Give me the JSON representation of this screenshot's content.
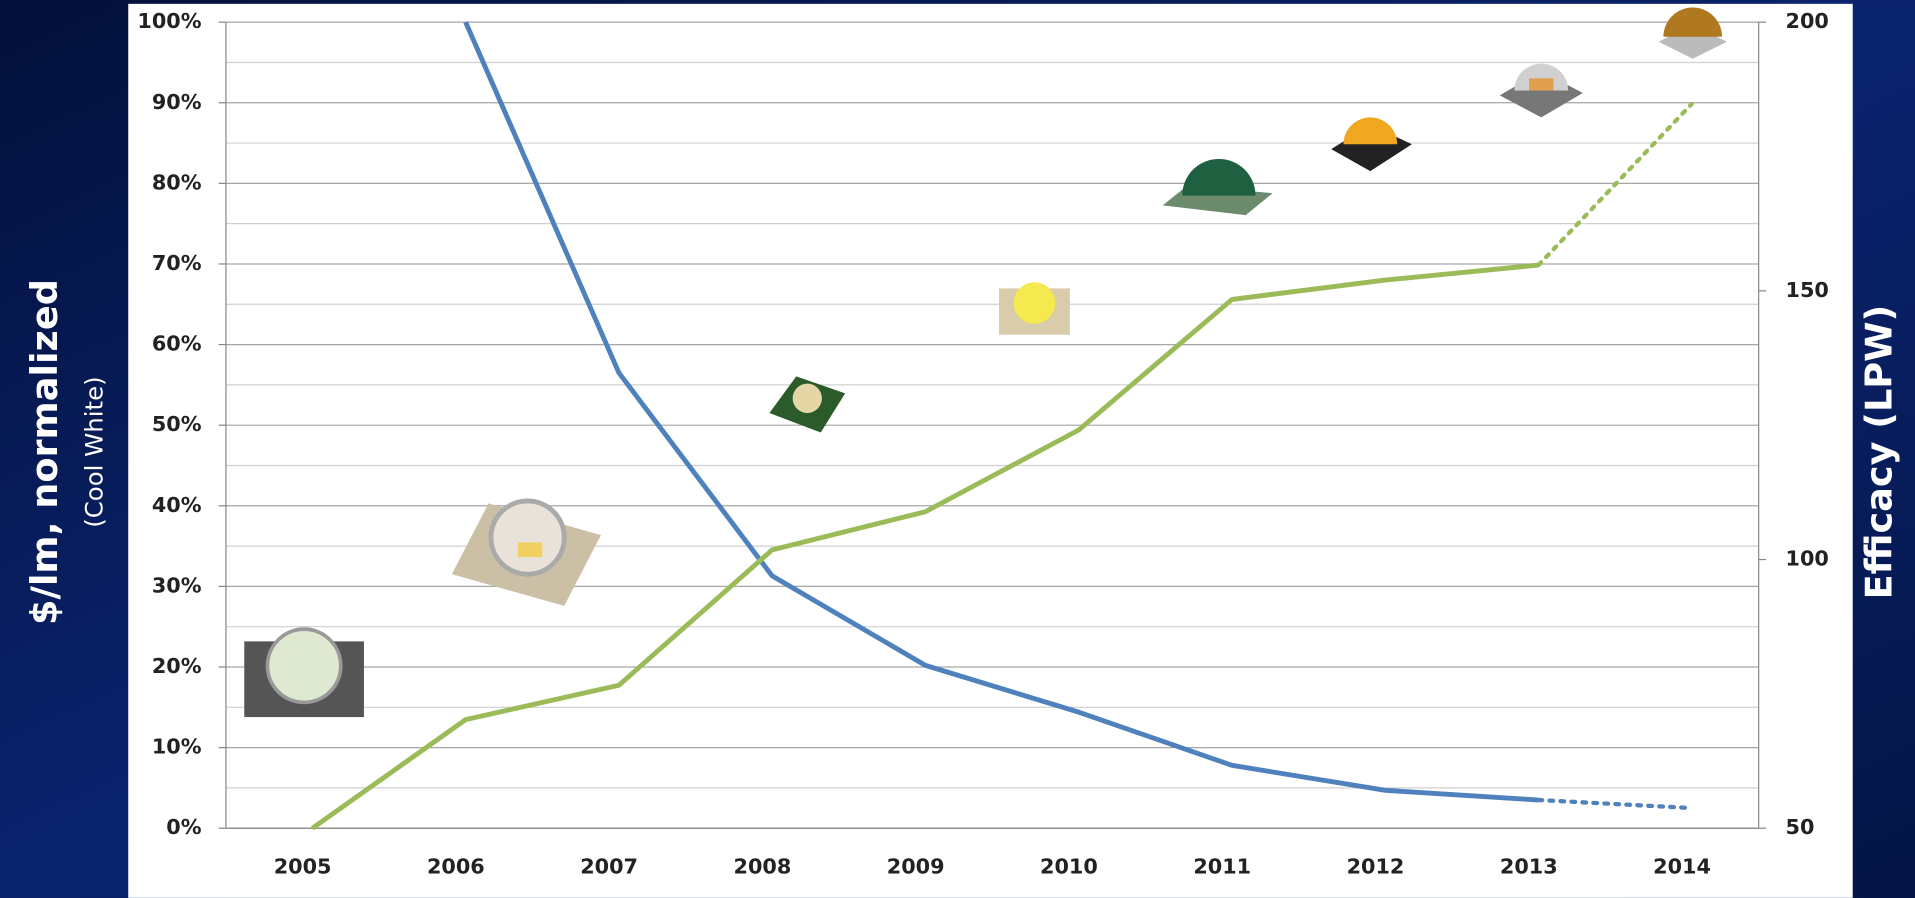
{
  "chart_data": {
    "type": "line",
    "y_title": "$/lm, normalized",
    "y_subtitle": "(Cool White)",
    "y2_title": "Efficacy (LPW)",
    "categories": [
      "2005",
      "2006",
      "2007",
      "2008",
      "2009",
      "2010",
      "2011",
      "2012",
      "2013",
      "2014"
    ],
    "series": [
      {
        "color": "#4f81bd",
        "style": "solid",
        "values": [
          null,
          100,
          56.5,
          31.3,
          20.2,
          14.4,
          7.8,
          4.7,
          3.5,
          null
        ]
      },
      {
        "color": "#4f81bd",
        "style": "dotted",
        "values": [
          null,
          null,
          null,
          null,
          null,
          null,
          null,
          null,
          3.5,
          2.5
        ]
      },
      {
        "color": "#9bbb59",
        "style": "solid",
        "axis": "y2",
        "values": [
          50,
          70.2,
          76.6,
          101.8,
          108.9,
          124.1,
          148.4,
          152,
          154.8,
          null
        ]
      },
      {
        "color": "#9bbb59",
        "style": "dotted",
        "axis": "y2",
        "values": [
          null,
          null,
          null,
          null,
          null,
          null,
          null,
          null,
          154.8,
          184.8
        ]
      }
    ],
    "ylim": [
      0,
      100
    ],
    "yticks": [
      {
        "value": 0,
        "label": "0%"
      },
      {
        "value": 10,
        "label": "10%"
      },
      {
        "value": 20,
        "label": "20%"
      },
      {
        "value": 30,
        "label": "30%"
      },
      {
        "value": 40,
        "label": "40%"
      },
      {
        "value": 50,
        "label": "50%"
      },
      {
        "value": 60,
        "label": "60%"
      },
      {
        "value": 70,
        "label": "70%"
      },
      {
        "value": 80,
        "label": "80%"
      },
      {
        "value": 90,
        "label": "90%"
      },
      {
        "value": 100,
        "label": "100%"
      }
    ],
    "minor_yticks": [
      5,
      15,
      25,
      35,
      45,
      55,
      65,
      75,
      85,
      95
    ],
    "y2lim": [
      50,
      200
    ],
    "y2ticks": [
      50,
      100,
      150,
      200
    ],
    "grid": true
  }
}
